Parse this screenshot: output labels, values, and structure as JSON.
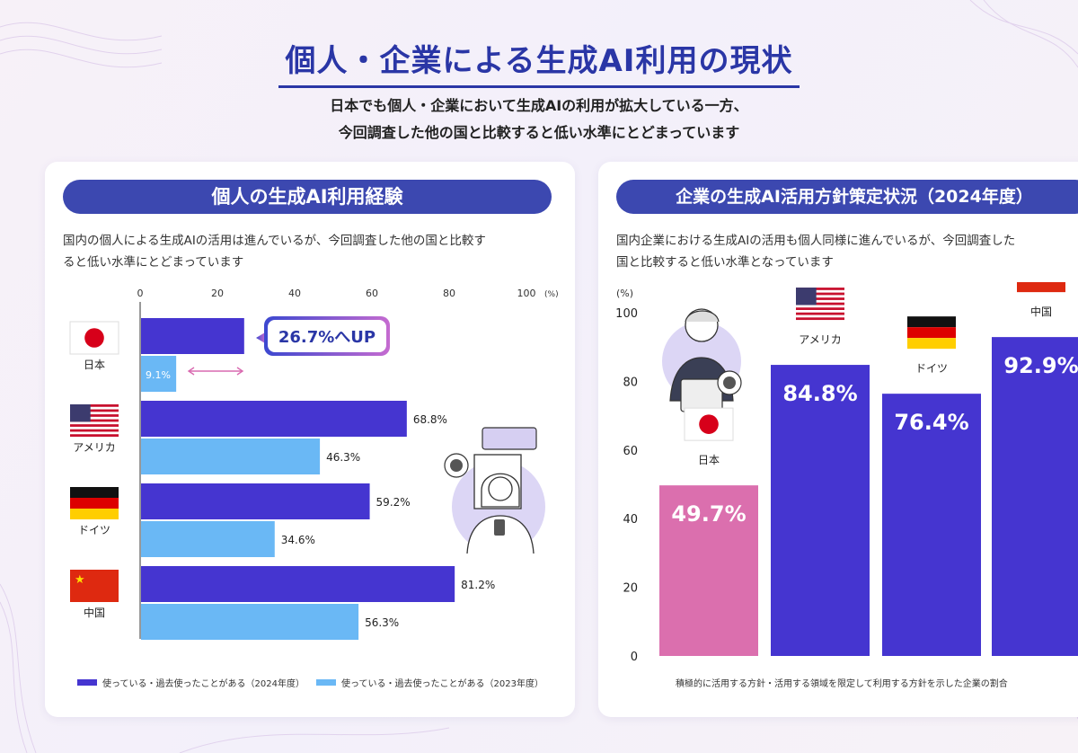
{
  "header": {
    "title": "個人・企業による生成AI利用の現状",
    "subtitle_line1": "日本でも個人・企業において生成AIの利用が拡大している一方、",
    "subtitle_line2": "今回調査した他の国と比較すると低い水準にとどまっています"
  },
  "left_panel": {
    "heading": "個人の生成AI利用経験",
    "desc_line1": "国内の個人による生成AIの活用は進んでいるが、今回調査した他の国と比較す",
    "desc_line2": "ると低い水準にとどまっています",
    "callout": "26.7%へUP",
    "legend_2024": "使っている・過去使ったことがある（2024年度）",
    "legend_2023": "使っている・過去使ったことがある（2023年度）"
  },
  "right_panel": {
    "heading": "企業の生成AI活用方針策定状況（2024年度）",
    "desc_line1": "国内企業における生成AIの活用も個人同様に進んでいるが、今回調査した",
    "desc_line2": "国と比較すると低い水準となっています",
    "footnote": "積極的に活用する方針・活用する領域を限定して利用する方針を示した企業の割合"
  },
  "colors": {
    "bar_2024": "#4535d0",
    "bar_2023": "#6ab8f5",
    "japan_bar": "#db6fae",
    "accent": "#3c48b0"
  },
  "chart_data": [
    {
      "type": "bar",
      "orientation": "horizontal",
      "categories": [
        "日本",
        "アメリカ",
        "ドイツ",
        "中国"
      ],
      "series": [
        {
          "name": "使っている・過去使ったことがある（2024年度）",
          "values": [
            26.7,
            68.8,
            59.2,
            81.2
          ]
        },
        {
          "name": "使っている・過去使ったことがある（2023年度）",
          "values": [
            9.1,
            46.3,
            34.6,
            56.3
          ]
        }
      ],
      "value_labels_2024": [
        "",
        "68.8%",
        "59.2%",
        "81.2%"
      ],
      "value_labels_2023": [
        "9.1%",
        "46.3%",
        "34.6%",
        "56.3%"
      ],
      "xticks": [
        "0",
        "20",
        "40",
        "60",
        "80",
        "100"
      ],
      "xunit": "(%)",
      "xlim": [
        0,
        100
      ],
      "legend": "bottom"
    },
    {
      "type": "bar",
      "categories": [
        "日本",
        "アメリカ",
        "ドイツ",
        "中国"
      ],
      "values": [
        49.7,
        84.8,
        76.4,
        92.9
      ],
      "value_labels": [
        "49.7%",
        "84.8%",
        "76.4%",
        "92.9%"
      ],
      "yticks": [
        "0",
        "20",
        "40",
        "60",
        "80",
        "100"
      ],
      "yunit": "(%)",
      "ylim": [
        0,
        100
      ]
    }
  ]
}
